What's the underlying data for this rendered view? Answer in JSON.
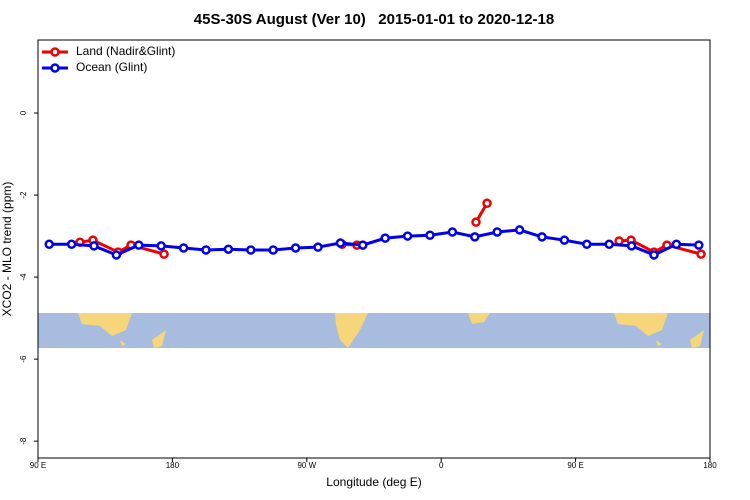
{
  "chart_data": {
    "type": "line",
    "title": "45S-30S August (Ver 10)   2015-01-01 to 2020-12-18",
    "x_label": "Longitude (deg E)",
    "y_label": "XCO2 - MLO trend (ppm)",
    "xlim": [
      90,
      540
    ],
    "ylim": [
      -8.41,
      1.78
    ],
    "xticks": [
      {
        "value": 90,
        "label": "90 E"
      },
      180,
      {
        "value": 270,
        "label": "90 W"
      },
      {
        "value": 360,
        "label": "0"
      },
      {
        "value": 450,
        "label": "90 E"
      },
      {
        "value": 540,
        "label": "180"
      }
    ],
    "yticks": [
      0,
      -2,
      -4,
      -6,
      -8
    ],
    "legend": "top-left",
    "series": [
      {
        "name": "Land (Nadir&Glint)",
        "color": "#ee0000",
        "x": [
          118.1,
          126.8,
          143.6,
          152.3,
          174.4,
          null,
          293.6,
          303.6,
          null,
          383.3,
          390.7,
          null,
          479.1,
          487.1,
          502.5,
          511.2,
          534.0
        ],
        "values": [
          -3.15,
          -3.1,
          -3.39,
          -3.22,
          -3.44,
          null,
          -3.2,
          -3.22,
          null,
          -2.66,
          -2.2,
          null,
          -3.12,
          -3.1,
          -3.39,
          -3.22,
          -3.44
        ]
      },
      {
        "name": "Ocean (Glint)",
        "color": "#0000ee",
        "x": [
          97.5,
          112.5,
          127.5,
          142.5,
          157.5,
          172.5,
          187.5,
          202.5,
          217.5,
          232.5,
          247.5,
          262.5,
          277.5,
          292.5,
          307.5,
          322.5,
          337.5,
          352.5,
          367.5,
          382.5,
          397.5,
          412.5,
          427.5,
          442.5,
          457.5,
          472.5,
          487.5,
          502.5,
          517.5,
          532.5
        ],
        "values": [
          -3.2,
          -3.2,
          -3.24,
          -3.46,
          -3.22,
          -3.24,
          -3.29,
          -3.34,
          -3.32,
          -3.34,
          -3.34,
          -3.29,
          -3.27,
          -3.17,
          -3.22,
          -3.05,
          -3.0,
          -2.98,
          -2.9,
          -3.02,
          -2.9,
          -2.85,
          -3.02,
          -3.1,
          -3.2,
          -3.2,
          -3.24,
          -3.46,
          -3.2,
          -3.22
        ]
      }
    ]
  }
}
